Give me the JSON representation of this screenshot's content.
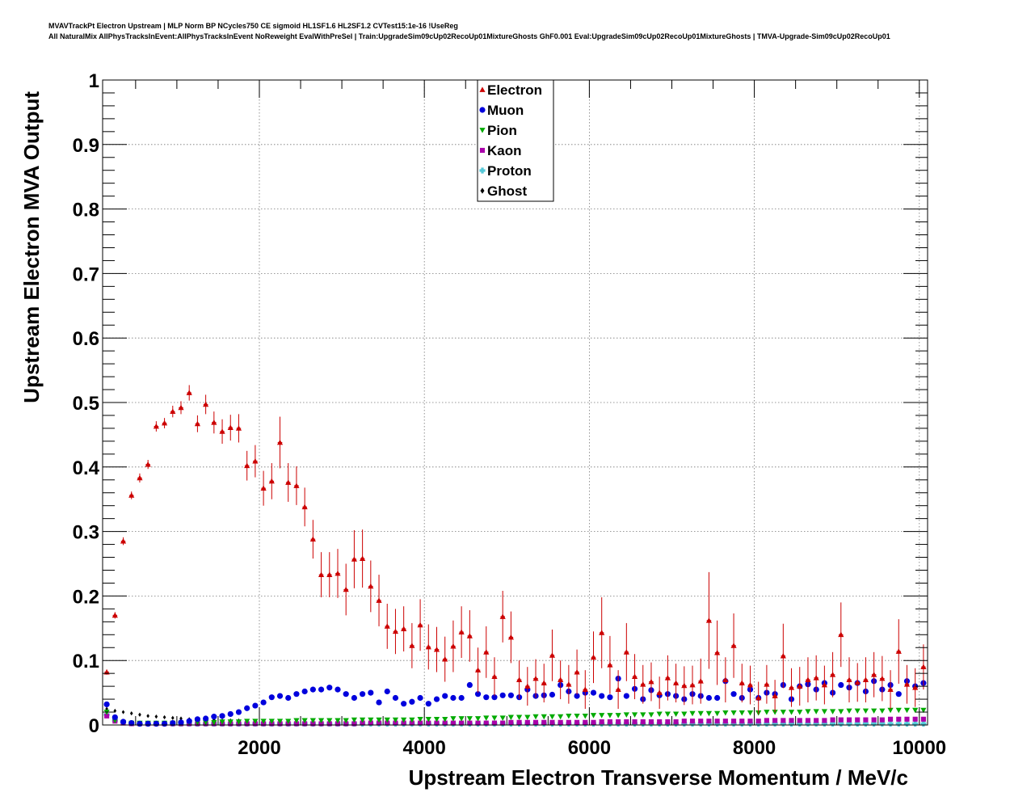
{
  "header": {
    "line1": "MVAVTrackPt Electron Upstream | MLP Norm BP NCycles750 CE sigmoid HL1SF1.6 HL2SF1.2 CVTest15:1e-16 !UseReg",
    "line2": "All NaturalMix AllPhysTracksInEvent:AllPhysTracksInEvent NoReweight EvalWithPreSel | Train:UpgradeSim09cUp02RecoUp01MixtureGhosts GhF0.001 Eval:UpgradeSim09cUp02RecoUp01MixtureGhosts | TMVA-Upgrade-Sim09cUp02RecoUp01"
  },
  "colors": {
    "electron": "#cc0000",
    "muon": "#0000dd",
    "pion": "#00aa00",
    "kaon": "#aa00aa",
    "proton": "#55c8d8",
    "ghost": "#000000"
  },
  "chart_data": {
    "type": "scatter",
    "xlabel": "Upstream Electron Transverse Momentum / MeV/c",
    "ylabel": "Upstream Electron MVA Output",
    "xlim": [
      100,
      10100
    ],
    "ylim": [
      0,
      1
    ],
    "x_ticks": [
      2000,
      4000,
      6000,
      8000,
      10000
    ],
    "y_ticks": [
      0,
      0.1,
      0.2,
      0.3,
      0.4,
      0.5,
      0.6,
      0.7,
      0.8,
      0.9,
      1
    ],
    "y_tick_labels": [
      "0",
      "0.1",
      "0.2",
      "0.3",
      "0.4",
      "0.5",
      "0.6",
      "0.7",
      "0.8",
      "0.9",
      "1"
    ],
    "grid": true,
    "legend_position": "top-center",
    "x_bins": {
      "start": 150,
      "step": 100,
      "count": 100
    },
    "series": [
      {
        "name": "Electron",
        "marker": "triangle-up",
        "values": [
          0.082,
          0.17,
          0.285,
          0.356,
          0.383,
          0.404,
          0.463,
          0.468,
          0.486,
          0.492,
          0.515,
          0.467,
          0.497,
          0.469,
          0.455,
          0.461,
          0.46,
          0.402,
          0.409,
          0.367,
          0.378,
          0.438,
          0.376,
          0.371,
          0.338,
          0.288,
          0.233,
          0.233,
          0.235,
          0.21,
          0.257,
          0.258,
          0.215,
          0.193,
          0.153,
          0.145,
          0.149,
          0.123,
          0.155,
          0.121,
          0.117,
          0.102,
          0.122,
          0.144,
          0.138,
          0.085,
          0.113,
          0.075,
          0.168,
          0.136,
          0.07,
          0.06,
          0.072,
          0.065,
          0.108,
          0.07,
          0.063,
          0.082,
          0.055,
          0.105,
          0.143,
          0.093,
          0.055,
          0.113,
          0.075,
          0.063,
          0.067,
          0.05,
          0.073,
          0.065,
          0.061,
          0.062,
          0.068,
          0.162,
          0.112,
          0.07,
          0.123,
          0.065,
          0.062,
          0.042,
          0.063,
          0.045,
          0.107,
          0.058,
          0.06,
          0.07,
          0.073,
          0.062,
          0.078,
          0.14,
          0.07,
          0.066,
          0.07,
          0.078,
          0.072,
          0.055,
          0.114,
          0.063,
          0.058,
          0.09
        ],
        "errors": [
          0.004,
          0.005,
          0.006,
          0.006,
          0.007,
          0.007,
          0.008,
          0.008,
          0.009,
          0.01,
          0.012,
          0.013,
          0.015,
          0.017,
          0.019,
          0.02,
          0.022,
          0.023,
          0.025,
          0.027,
          0.028,
          0.04,
          0.03,
          0.03,
          0.03,
          0.03,
          0.035,
          0.035,
          0.038,
          0.04,
          0.045,
          0.045,
          0.04,
          0.04,
          0.035,
          0.035,
          0.035,
          0.035,
          0.04,
          0.035,
          0.035,
          0.035,
          0.04,
          0.04,
          0.04,
          0.035,
          0.04,
          0.03,
          0.04,
          0.04,
          0.03,
          0.03,
          0.03,
          0.03,
          0.04,
          0.03,
          0.03,
          0.035,
          0.03,
          0.04,
          0.055,
          0.045,
          0.03,
          0.045,
          0.035,
          0.03,
          0.03,
          0.025,
          0.035,
          0.03,
          0.03,
          0.03,
          0.035,
          0.075,
          0.05,
          0.035,
          0.05,
          0.03,
          0.03,
          0.025,
          0.03,
          0.025,
          0.05,
          0.03,
          0.03,
          0.035,
          0.035,
          0.03,
          0.035,
          0.05,
          0.035,
          0.03,
          0.035,
          0.035,
          0.035,
          0.03,
          0.05,
          0.03,
          0.03,
          0.035
        ]
      },
      {
        "name": "Muon",
        "marker": "circle",
        "values": [
          0.032,
          0.012,
          0.005,
          0.003,
          0.002,
          0.002,
          0.002,
          0.002,
          0.003,
          0.004,
          0.006,
          0.009,
          0.01,
          0.013,
          0.014,
          0.017,
          0.02,
          0.026,
          0.03,
          0.035,
          0.043,
          0.045,
          0.042,
          0.048,
          0.052,
          0.055,
          0.055,
          0.058,
          0.055,
          0.048,
          0.042,
          0.048,
          0.05,
          0.035,
          0.052,
          0.042,
          0.033,
          0.036,
          0.042,
          0.033,
          0.04,
          0.045,
          0.042,
          0.042,
          0.062,
          0.048,
          0.043,
          0.043,
          0.046,
          0.046,
          0.043,
          0.055,
          0.045,
          0.046,
          0.047,
          0.062,
          0.052,
          0.045,
          0.05,
          0.05,
          0.045,
          0.043,
          0.072,
          0.045,
          0.056,
          0.04,
          0.054,
          0.046,
          0.048,
          0.045,
          0.04,
          0.048,
          0.045,
          0.042,
          0.042,
          0.068,
          0.048,
          0.042,
          0.055,
          0.042,
          0.05,
          0.048,
          0.062,
          0.04,
          0.06,
          0.063,
          0.055,
          0.065,
          0.05,
          0.062,
          0.058,
          0.065,
          0.052,
          0.068,
          0.055,
          0.062,
          0.048,
          0.068,
          0.06,
          0.065
        ]
      },
      {
        "name": "Pion",
        "marker": "triangle-down",
        "values": [
          0.02,
          0.007,
          0.004,
          0.003,
          0.003,
          0.003,
          0.003,
          0.003,
          0.003,
          0.003,
          0.004,
          0.004,
          0.004,
          0.004,
          0.005,
          0.005,
          0.005,
          0.006,
          0.006,
          0.006,
          0.006,
          0.006,
          0.006,
          0.007,
          0.007,
          0.007,
          0.007,
          0.007,
          0.007,
          0.007,
          0.008,
          0.008,
          0.008,
          0.008,
          0.008,
          0.008,
          0.008,
          0.008,
          0.009,
          0.009,
          0.009,
          0.009,
          0.01,
          0.01,
          0.01,
          0.01,
          0.011,
          0.011,
          0.011,
          0.012,
          0.012,
          0.012,
          0.013,
          0.013,
          0.013,
          0.013,
          0.014,
          0.014,
          0.014,
          0.015,
          0.015,
          0.015,
          0.015,
          0.016,
          0.016,
          0.016,
          0.016,
          0.017,
          0.017,
          0.017,
          0.017,
          0.018,
          0.018,
          0.018,
          0.018,
          0.019,
          0.019,
          0.019,
          0.019,
          0.019,
          0.02,
          0.02,
          0.02,
          0.02,
          0.02,
          0.021,
          0.021,
          0.021,
          0.021,
          0.021,
          0.022,
          0.022,
          0.022,
          0.022,
          0.022,
          0.023,
          0.023,
          0.023,
          0.023,
          0.023
        ]
      },
      {
        "name": "Kaon",
        "marker": "square",
        "values": [
          0.014,
          0.006,
          0.003,
          0.002,
          0.002,
          0.002,
          0.002,
          0.002,
          0.002,
          0.002,
          0.002,
          0.002,
          0.002,
          0.002,
          0.002,
          0.002,
          0.002,
          0.002,
          0.002,
          0.002,
          0.002,
          0.002,
          0.002,
          0.002,
          0.002,
          0.002,
          0.002,
          0.002,
          0.002,
          0.002,
          0.002,
          0.003,
          0.003,
          0.003,
          0.003,
          0.003,
          0.003,
          0.003,
          0.003,
          0.003,
          0.003,
          0.003,
          0.003,
          0.003,
          0.003,
          0.003,
          0.003,
          0.003,
          0.003,
          0.004,
          0.004,
          0.004,
          0.004,
          0.004,
          0.004,
          0.004,
          0.004,
          0.004,
          0.004,
          0.004,
          0.005,
          0.005,
          0.005,
          0.005,
          0.005,
          0.005,
          0.005,
          0.005,
          0.005,
          0.005,
          0.006,
          0.006,
          0.006,
          0.006,
          0.006,
          0.006,
          0.006,
          0.006,
          0.006,
          0.006,
          0.007,
          0.007,
          0.007,
          0.007,
          0.007,
          0.007,
          0.007,
          0.007,
          0.008,
          0.008,
          0.008,
          0.008,
          0.008,
          0.008,
          0.008,
          0.009,
          0.009,
          0.009,
          0.009,
          0.009
        ]
      },
      {
        "name": "Proton",
        "marker": "cross",
        "values": [
          0.016,
          0.007,
          0.004,
          0.003,
          0.002,
          0.002,
          0.002,
          0.002,
          0.002,
          0.002,
          0.002,
          0.002,
          0.002,
          0.002,
          0.002,
          0.002,
          0.002,
          0.002,
          0.002,
          0.002,
          0.002,
          0.002,
          0.002,
          0.002,
          0.002,
          0.002,
          0.002,
          0.002,
          0.002,
          0.002,
          0.002,
          0.002,
          0.002,
          0.002,
          0.002,
          0.002,
          0.002,
          0.002,
          0.002,
          0.002,
          0.002,
          0.002,
          0.002,
          0.002,
          0.002,
          0.002,
          0.002,
          0.002,
          0.002,
          0.002,
          0.002,
          0.002,
          0.002,
          0.002,
          0.002,
          0.002,
          0.002,
          0.002,
          0.002,
          0.002,
          0.002,
          0.002,
          0.002,
          0.002,
          0.002,
          0.002,
          0.002,
          0.002,
          0.002,
          0.002,
          0.002,
          0.002,
          0.002,
          0.002,
          0.002,
          0.002,
          0.002,
          0.002,
          0.002,
          0.002,
          0.002,
          0.002,
          0.002,
          0.002,
          0.002,
          0.002,
          0.002,
          0.002,
          0.002,
          0.002,
          0.002,
          0.002,
          0.002,
          0.002,
          0.002,
          0.002,
          0.002,
          0.002,
          0.002,
          0.002
        ]
      },
      {
        "name": "Ghost",
        "marker": "diamond",
        "values": [
          0.025,
          0.022,
          0.02,
          0.018,
          0.016,
          0.014,
          0.013,
          0.012,
          0.011,
          0.01,
          0.009,
          0.009,
          0.008,
          0.008,
          0.007,
          0.007,
          0.007,
          0.006,
          0.006,
          0.006,
          0.006,
          0.005,
          0.005,
          0.005,
          0.005,
          0.005,
          0.005,
          0.005,
          0.004,
          0.004,
          0.004,
          0.004,
          0.004,
          0.004,
          0.004,
          0.004,
          0.004,
          0.004,
          0.004,
          0.004,
          0.004,
          0.004,
          0.004,
          0.004,
          0.004,
          0.004,
          0.004,
          0.004,
          0.004,
          0.004,
          0.004,
          0.004,
          0.004,
          0.004,
          0.004,
          0.004,
          0.004,
          0.004,
          0.004,
          0.004,
          0.004,
          0.004,
          0.004,
          0.004,
          0.004,
          0.004,
          0.004,
          0.004,
          0.004,
          0.004,
          0.004,
          0.004,
          0.004,
          0.004,
          0.004,
          0.004,
          0.004,
          0.004,
          0.004,
          0.004,
          0.004,
          0.004,
          0.004,
          0.004,
          0.004,
          0.004,
          0.004,
          0.004,
          0.004,
          0.004,
          0.004,
          0.004,
          0.004,
          0.004,
          0.004,
          0.004,
          0.004,
          0.004,
          0.004,
          0.004
        ]
      }
    ]
  }
}
